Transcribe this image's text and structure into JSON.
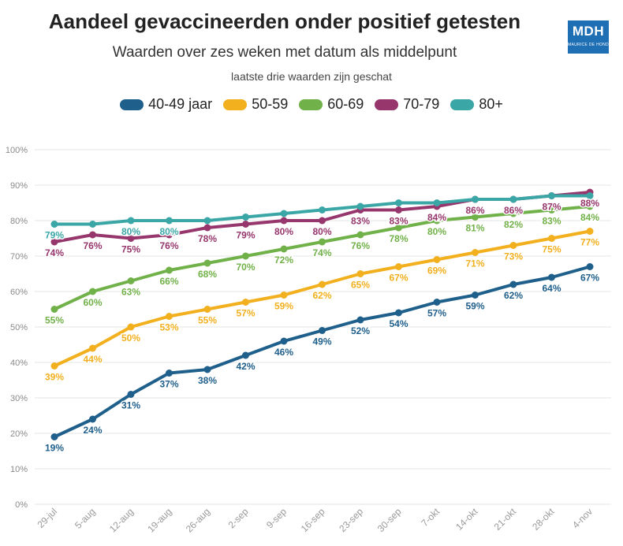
{
  "chart_data": {
    "type": "line",
    "title": "Aandeel gevaccineerden onder positief getesten",
    "subtitle": "Waarden over zes weken met datum als middelpunt",
    "note": "laatste drie waarden zijn geschat",
    "xlabel": "",
    "ylabel": "",
    "ylim": [
      0,
      100
    ],
    "y_ticks": [
      "0%",
      "10%",
      "20%",
      "30%",
      "40%",
      "50%",
      "60%",
      "70%",
      "80%",
      "90%",
      "100%"
    ],
    "grid": true,
    "legend_position": "top",
    "categories": [
      "29-jul",
      "5-aug",
      "12-aug",
      "19-aug",
      "26-aug",
      "2-sep",
      "9-sep",
      "16-sep",
      "23-sep",
      "30-sep",
      "7-okt",
      "14-okt",
      "21-okt",
      "28-okt",
      "4-nov"
    ],
    "series": [
      {
        "name": "40-49 jaar",
        "color": "#1f5f8b",
        "values": [
          19,
          24,
          31,
          37,
          38,
          42,
          46,
          49,
          52,
          54,
          57,
          59,
          62,
          64,
          67
        ],
        "labels": [
          "19%",
          "24%",
          "31%",
          "37%",
          "38%",
          "42%",
          "46%",
          "49%",
          "52%",
          "54%",
          "57%",
          "59%",
          "62%",
          "64%",
          "67%"
        ]
      },
      {
        "name": "50-59",
        "color": "#f2b01e",
        "values": [
          39,
          44,
          50,
          53,
          55,
          57,
          59,
          62,
          65,
          67,
          69,
          71,
          73,
          75,
          77
        ],
        "labels": [
          "39%",
          "44%",
          "50%",
          "53%",
          "55%",
          "57%",
          "59%",
          "62%",
          "65%",
          "67%",
          "69%",
          "71%",
          "73%",
          "75%",
          "77%"
        ]
      },
      {
        "name": "60-69",
        "color": "#71b149",
        "values": [
          55,
          60,
          63,
          66,
          68,
          70,
          72,
          74,
          76,
          78,
          80,
          81,
          82,
          83,
          84
        ],
        "labels": [
          "55%",
          "60%",
          "63%",
          "66%",
          "68%",
          "70%",
          "72%",
          "74%",
          "76%",
          "78%",
          "80%",
          "81%",
          "82%",
          "83%",
          "84%"
        ]
      },
      {
        "name": "70-79",
        "color": "#96366c",
        "values": [
          74,
          76,
          75,
          76,
          78,
          79,
          80,
          80,
          83,
          83,
          84,
          86,
          86,
          87,
          88
        ],
        "labels": [
          "74%",
          "76%",
          "75%",
          "76%",
          "78%",
          "79%",
          "80%",
          "80%",
          "83%",
          "83%",
          "84%",
          "86%",
          "86%",
          "87%",
          "88%"
        ]
      },
      {
        "name": "80+",
        "color": "#3aa6a6",
        "values": [
          79,
          79,
          80,
          80,
          80,
          81,
          82,
          83,
          84,
          85,
          85,
          86,
          86,
          87,
          87
        ],
        "labels": [
          "79%",
          "",
          "80%",
          "80%",
          "",
          "",
          "",
          "",
          "",
          "",
          "",
          "",
          "",
          "",
          ""
        ]
      }
    ]
  },
  "logo": {
    "main": "MDH",
    "sub": "MAURICE DE HOND"
  }
}
